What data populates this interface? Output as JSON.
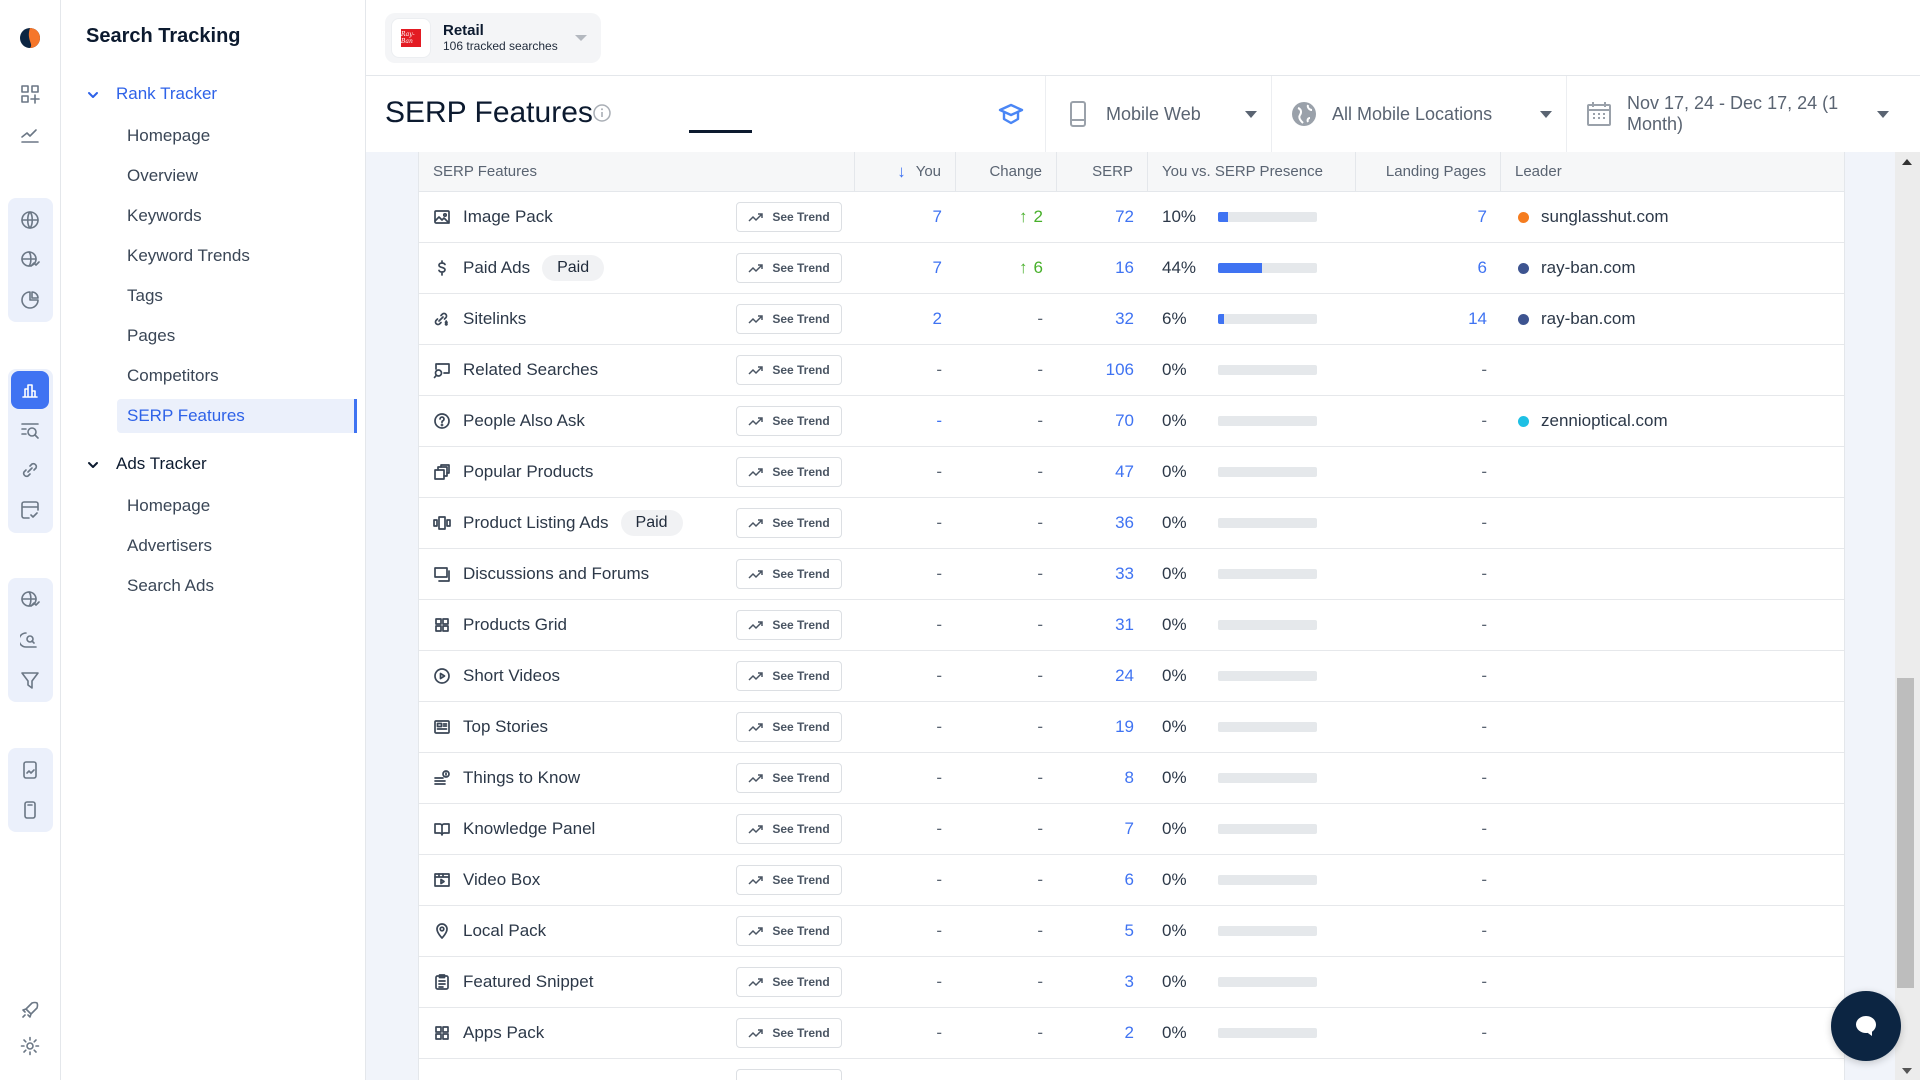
{
  "nav": {
    "title": "Search Tracking",
    "sections": [
      {
        "label": "Rank Tracker",
        "expanded": true,
        "items": [
          {
            "label": "Homepage"
          },
          {
            "label": "Overview"
          },
          {
            "label": "Keywords"
          },
          {
            "label": "Keyword Trends"
          },
          {
            "label": "Tags"
          },
          {
            "label": "Pages"
          },
          {
            "label": "Competitors"
          },
          {
            "label": "SERP Features",
            "active": true
          }
        ]
      },
      {
        "label": "Ads Tracker",
        "expanded": true,
        "items": [
          {
            "label": "Homepage"
          },
          {
            "label": "Advertisers"
          },
          {
            "label": "Search Ads"
          }
        ]
      }
    ]
  },
  "rail": {
    "icons": [
      "logo-icon",
      "dashboard-add-icon",
      "trend-chart-icon",
      "globe-icon",
      "globe-trend-icon",
      "pie-chart-icon",
      "bar-chart-icon",
      "search-list-icon",
      "link-icon",
      "browser-check-icon",
      "globe-trend-icon",
      "search-lens-icon",
      "filter-icon",
      "mobile-trend-icon",
      "mobile-icon",
      "rocket-icon",
      "gear-icon"
    ]
  },
  "topbar": {
    "selector": {
      "name": "Retail",
      "subtitle": "106 tracked searches",
      "logo_text": "Ray-Ban"
    }
  },
  "header": {
    "title": "SERP Features",
    "filters": {
      "device": "Mobile Web",
      "location": "All Mobile Locations",
      "date_range": "Nov 17, 24 - Dec 17, 24 (1 Month)"
    }
  },
  "table": {
    "columns": {
      "feature": "SERP Features",
      "you": "You",
      "change": "Change",
      "serp": "SERP",
      "presence": "You vs. SERP Presence",
      "landing": "Landing Pages",
      "leader": "Leader"
    },
    "see_trend_label": "See Trend",
    "paid_label": "Paid",
    "rows": [
      {
        "name": "Image Pack",
        "icon": "image-icon",
        "paid": false,
        "you": "7",
        "change": "2",
        "change_dir": "up",
        "serp": "72",
        "presence": "10%",
        "presence_pct": 10,
        "landing": "7",
        "leader": "sunglasshut.com",
        "leader_color": "#f57c1f"
      },
      {
        "name": "Paid Ads",
        "icon": "dollar-icon",
        "paid": true,
        "you": "7",
        "change": "6",
        "change_dir": "up",
        "serp": "16",
        "presence": "44%",
        "presence_pct": 44,
        "landing": "6",
        "leader": "ray-ban.com",
        "leader_color": "#3d5490"
      },
      {
        "name": "Sitelinks",
        "icon": "sitelink-icon",
        "paid": false,
        "you": "2",
        "change": "-",
        "change_dir": "none",
        "serp": "32",
        "presence": "6%",
        "presence_pct": 6,
        "landing": "14",
        "leader": "ray-ban.com",
        "leader_color": "#3d5490"
      },
      {
        "name": "Related Searches",
        "icon": "related-search-icon",
        "paid": false,
        "you": "-",
        "change": "-",
        "change_dir": "none",
        "serp": "106",
        "presence": "0%",
        "presence_pct": 0,
        "landing": "-",
        "leader": "",
        "leader_color": ""
      },
      {
        "name": "People Also Ask",
        "icon": "question-icon",
        "paid": false,
        "you": "-",
        "change": "-",
        "change_dir": "none",
        "serp": "70",
        "presence": "0%",
        "presence_pct": 0,
        "landing": "-",
        "leader": "zennioptical.com",
        "leader_color": "#1ec0e4"
      },
      {
        "name": "Popular Products",
        "icon": "stacked-squares-icon",
        "paid": false,
        "you": "-",
        "change": "-",
        "change_dir": "none",
        "serp": "47",
        "presence": "0%",
        "presence_pct": 0,
        "landing": "-",
        "leader": "",
        "leader_color": ""
      },
      {
        "name": "Product Listing Ads",
        "icon": "carousel-icon",
        "paid": true,
        "you": "-",
        "change": "-",
        "change_dir": "none",
        "serp": "36",
        "presence": "0%",
        "presence_pct": 0,
        "landing": "-",
        "leader": "",
        "leader_color": ""
      },
      {
        "name": "Discussions and Forums",
        "icon": "chat-square-icon",
        "paid": false,
        "you": "-",
        "change": "-",
        "change_dir": "none",
        "serp": "33",
        "presence": "0%",
        "presence_pct": 0,
        "landing": "-",
        "leader": "",
        "leader_color": ""
      },
      {
        "name": "Products Grid",
        "icon": "grid-icon",
        "paid": false,
        "you": "-",
        "change": "-",
        "change_dir": "none",
        "serp": "31",
        "presence": "0%",
        "presence_pct": 0,
        "landing": "-",
        "leader": "",
        "leader_color": ""
      },
      {
        "name": "Short Videos",
        "icon": "play-circle-icon",
        "paid": false,
        "you": "-",
        "change": "-",
        "change_dir": "none",
        "serp": "24",
        "presence": "0%",
        "presence_pct": 0,
        "landing": "-",
        "leader": "",
        "leader_color": ""
      },
      {
        "name": "Top Stories",
        "icon": "newspaper-icon",
        "paid": false,
        "you": "-",
        "change": "-",
        "change_dir": "none",
        "serp": "19",
        "presence": "0%",
        "presence_pct": 0,
        "landing": "-",
        "leader": "",
        "leader_color": ""
      },
      {
        "name": "Things to Know",
        "icon": "list-info-icon",
        "paid": false,
        "you": "-",
        "change": "-",
        "change_dir": "none",
        "serp": "8",
        "presence": "0%",
        "presence_pct": 0,
        "landing": "-",
        "leader": "",
        "leader_color": ""
      },
      {
        "name": "Knowledge Panel",
        "icon": "book-icon",
        "paid": false,
        "you": "-",
        "change": "-",
        "change_dir": "none",
        "serp": "7",
        "presence": "0%",
        "presence_pct": 0,
        "landing": "-",
        "leader": "",
        "leader_color": ""
      },
      {
        "name": "Video Box",
        "icon": "video-box-icon",
        "paid": false,
        "you": "-",
        "change": "-",
        "change_dir": "none",
        "serp": "6",
        "presence": "0%",
        "presence_pct": 0,
        "landing": "-",
        "leader": "",
        "leader_color": ""
      },
      {
        "name": "Local Pack",
        "icon": "map-pin-icon",
        "paid": false,
        "you": "-",
        "change": "-",
        "change_dir": "none",
        "serp": "5",
        "presence": "0%",
        "presence_pct": 0,
        "landing": "-",
        "leader": "",
        "leader_color": ""
      },
      {
        "name": "Featured Snippet",
        "icon": "clipboard-icon",
        "paid": false,
        "you": "-",
        "change": "-",
        "change_dir": "none",
        "serp": "3",
        "presence": "0%",
        "presence_pct": 0,
        "landing": "-",
        "leader": "",
        "leader_color": ""
      },
      {
        "name": "Apps Pack",
        "icon": "grid-icon",
        "paid": false,
        "you": "-",
        "change": "-",
        "change_dir": "none",
        "serp": "2",
        "presence": "0%",
        "presence_pct": 0,
        "landing": "-",
        "leader": "",
        "leader_color": ""
      }
    ]
  },
  "colors": {
    "accent": "#3f73f2",
    "positive": "#48b02b",
    "nav_active_bg": "#ebf0fb",
    "chat_bg": "#0c2542"
  }
}
